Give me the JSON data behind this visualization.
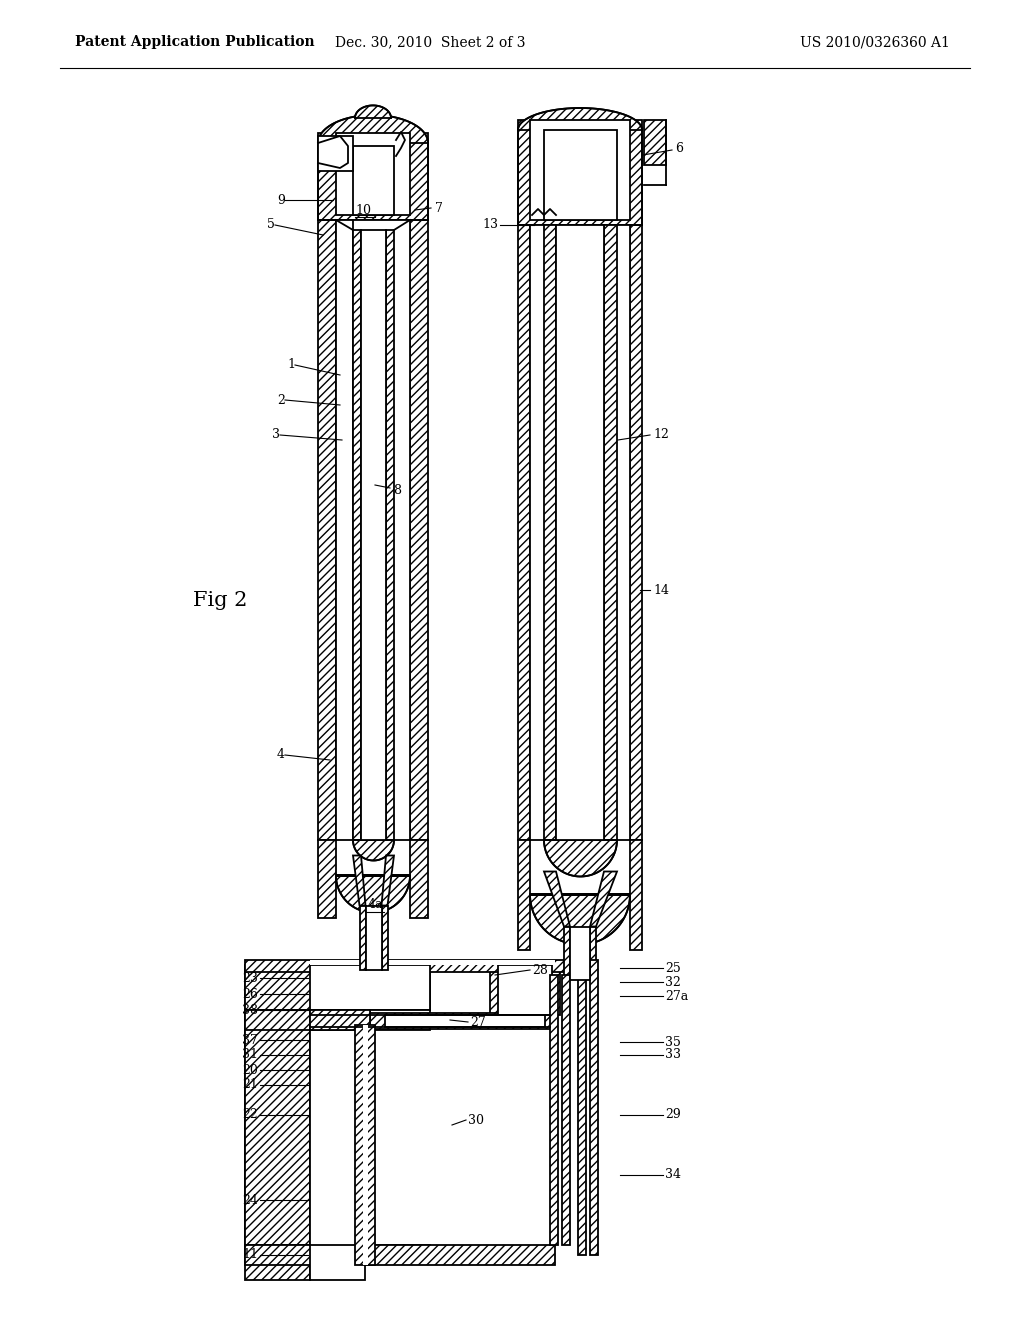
{
  "header_left": "Patent Application Publication",
  "header_mid": "Dec. 30, 2010  Sheet 2 of 3",
  "header_right": "US 2010/0326360 A1",
  "fig_label": "Fig 2",
  "bg_color": "#ffffff",
  "lc": "#000000",
  "fs": 9
}
